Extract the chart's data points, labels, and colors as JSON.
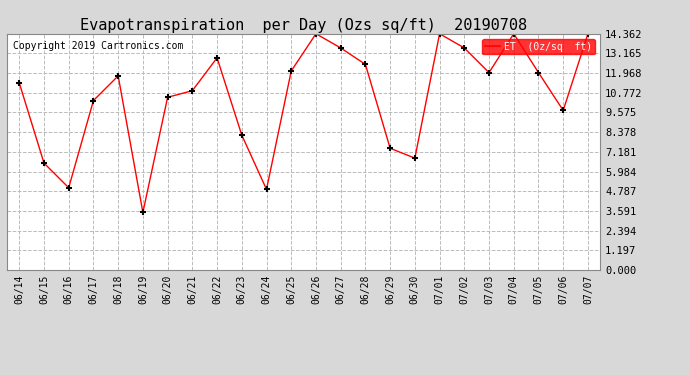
{
  "title": "Evapotranspiration  per Day (Ozs sq/ft)  20190708",
  "copyright": "Copyright 2019 Cartronics.com",
  "legend_label": "ET  (0z/sq  ft)",
  "x_labels": [
    "06/14",
    "06/15",
    "06/16",
    "06/17",
    "06/18",
    "06/19",
    "06/20",
    "06/21",
    "06/22",
    "06/23",
    "06/24",
    "06/25",
    "06/26",
    "06/27",
    "06/28",
    "06/29",
    "06/30",
    "07/01",
    "07/02",
    "07/03",
    "07/04",
    "07/05",
    "07/06",
    "07/07"
  ],
  "y_values": [
    11.375,
    6.5,
    5.0,
    10.3,
    11.8,
    3.5,
    10.5,
    10.9,
    12.9,
    8.2,
    4.9,
    12.1,
    14.362,
    13.5,
    12.5,
    7.4,
    6.8,
    14.362,
    13.5,
    12.0,
    14.362,
    12.0,
    9.7,
    14.362
  ],
  "y_ticks": [
    0.0,
    1.197,
    2.394,
    3.591,
    4.787,
    5.984,
    7.181,
    8.378,
    9.575,
    10.772,
    11.968,
    13.165,
    14.362
  ],
  "line_color": "red",
  "marker": "+",
  "marker_color": "black",
  "grid_color": "#bbbbbb",
  "bg_color": "#d8d8d8",
  "plot_bg_color": "#ffffff",
  "legend_bg": "red",
  "legend_text_color": "white",
  "title_fontsize": 11,
  "copyright_fontsize": 7,
  "ylim": [
    0.0,
    14.362
  ],
  "y_tick_fontsize": 7.5,
  "x_tick_fontsize": 7
}
